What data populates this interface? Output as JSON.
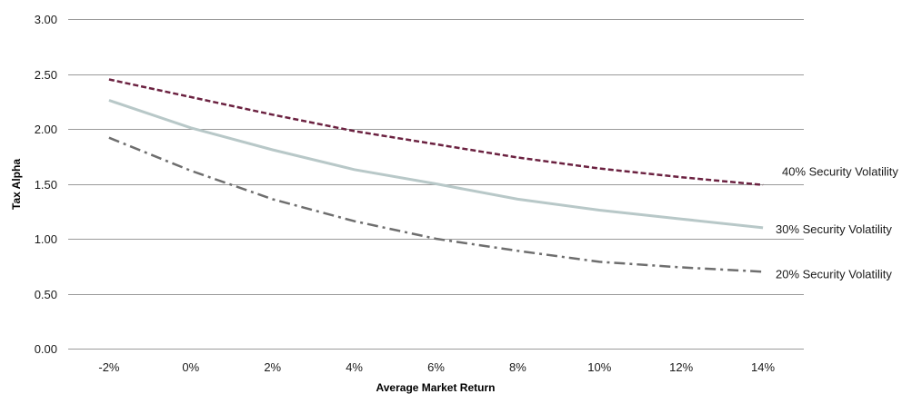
{
  "chart_data": {
    "type": "line",
    "title": "",
    "xlabel": "Average Market Return",
    "ylabel": "Tax Alpha",
    "categories": [
      "-2%",
      "0%",
      "2%",
      "4%",
      "6%",
      "8%",
      "10%",
      "12%",
      "14%"
    ],
    "y_ticks": [
      "0.00",
      "0.50",
      "1.00",
      "1.50",
      "2.00",
      "2.50",
      "3.00"
    ],
    "ylim": [
      0,
      3
    ],
    "grid": "horizontal",
    "legend": "none; series labelled at right end of lines",
    "series": [
      {
        "name": "40% Security Volatility",
        "color": "#6b2140",
        "style": "dashed",
        "values": [
          2.45,
          2.29,
          2.13,
          1.98,
          1.86,
          1.74,
          1.64,
          1.56,
          1.49
        ]
      },
      {
        "name": "30% Security Volatility",
        "color": "#b8c8c8",
        "style": "solid",
        "values": [
          2.26,
          2.01,
          1.81,
          1.63,
          1.5,
          1.36,
          1.26,
          1.18,
          1.1
        ]
      },
      {
        "name": "20% Security Volatility",
        "color": "#6e6e6e",
        "style": "dash-dot",
        "values": [
          1.92,
          1.62,
          1.36,
          1.16,
          1.0,
          0.89,
          0.79,
          0.74,
          0.7
        ]
      }
    ]
  }
}
